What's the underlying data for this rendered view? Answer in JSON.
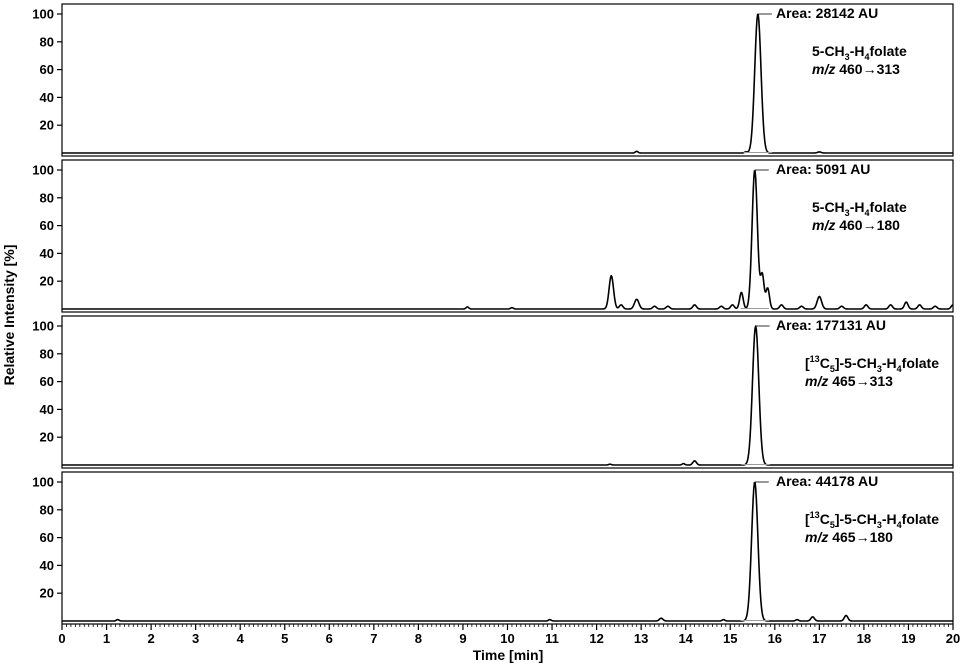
{
  "chart_data": {
    "type": "line",
    "xlabel": "Time [min]",
    "ylabel": "Relative Intensity [%]",
    "xlim": [
      0,
      20
    ],
    "x_ticks": [
      "0",
      "1",
      "2",
      "3",
      "4",
      "5",
      "6",
      "7",
      "8",
      "9",
      "10",
      "11",
      "12",
      "13",
      "14",
      "15",
      "16",
      "17",
      "18",
      "19",
      "20"
    ],
    "ylim": [
      0,
      100
    ],
    "y_ticks": [
      "20",
      "40",
      "60",
      "80",
      "100"
    ],
    "panels": [
      {
        "area_text": "Area: 28142 AU",
        "compound": "5-CH3-H4folate",
        "mz_prefix": "m/z",
        "transition": "460→313",
        "series": [
          {
            "center": 15.62,
            "width": 0.07,
            "height": 100
          },
          {
            "center": 12.9,
            "width": 0.03,
            "height": 1.2
          },
          {
            "center": 15.35,
            "width": 0.03,
            "height": 0.8
          },
          {
            "center": 17.0,
            "width": 0.04,
            "height": 0.8
          }
        ]
      },
      {
        "area_text": "Area: 5091 AU",
        "compound": "5-CH3-H4folate",
        "mz_prefix": "m/z",
        "transition": "460→180",
        "series": [
          {
            "center": 15.55,
            "width": 0.06,
            "height": 100
          },
          {
            "center": 12.33,
            "width": 0.05,
            "height": 24
          },
          {
            "center": 12.55,
            "width": 0.04,
            "height": 3
          },
          {
            "center": 12.9,
            "width": 0.05,
            "height": 7
          },
          {
            "center": 13.3,
            "width": 0.04,
            "height": 2
          },
          {
            "center": 13.6,
            "width": 0.04,
            "height": 2
          },
          {
            "center": 14.2,
            "width": 0.04,
            "height": 3
          },
          {
            "center": 14.8,
            "width": 0.04,
            "height": 2
          },
          {
            "center": 15.05,
            "width": 0.04,
            "height": 3
          },
          {
            "center": 15.25,
            "width": 0.04,
            "height": 12
          },
          {
            "center": 15.72,
            "width": 0.04,
            "height": 24
          },
          {
            "center": 15.84,
            "width": 0.04,
            "height": 15
          },
          {
            "center": 16.15,
            "width": 0.04,
            "height": 3
          },
          {
            "center": 16.6,
            "width": 0.04,
            "height": 2
          },
          {
            "center": 17.0,
            "width": 0.05,
            "height": 9
          },
          {
            "center": 17.5,
            "width": 0.04,
            "height": 2
          },
          {
            "center": 18.05,
            "width": 0.04,
            "height": 3
          },
          {
            "center": 18.6,
            "width": 0.04,
            "height": 3
          },
          {
            "center": 18.95,
            "width": 0.04,
            "height": 5
          },
          {
            "center": 19.25,
            "width": 0.04,
            "height": 3
          },
          {
            "center": 19.6,
            "width": 0.04,
            "height": 2
          },
          {
            "center": 20.0,
            "width": 0.04,
            "height": 3
          },
          {
            "center": 9.1,
            "width": 0.03,
            "height": 1.5
          },
          {
            "center": 10.1,
            "width": 0.03,
            "height": 1
          }
        ]
      },
      {
        "area_text": "Area: 177131 AU",
        "compound": "[13C5]-5-CH3-H4folate",
        "mz_prefix": "m/z",
        "transition": "465→313",
        "series": [
          {
            "center": 15.57,
            "width": 0.07,
            "height": 100
          },
          {
            "center": 14.2,
            "width": 0.04,
            "height": 3
          },
          {
            "center": 13.95,
            "width": 0.03,
            "height": 1
          },
          {
            "center": 12.3,
            "width": 0.03,
            "height": 0.6
          }
        ]
      },
      {
        "area_text": "Area: 44178 AU",
        "compound": "[13C5]-5-CH3-H4folate",
        "mz_prefix": "m/z",
        "transition": "465→180",
        "series": [
          {
            "center": 15.55,
            "width": 0.07,
            "height": 100
          },
          {
            "center": 1.25,
            "width": 0.03,
            "height": 1
          },
          {
            "center": 10.95,
            "width": 0.03,
            "height": 1
          },
          {
            "center": 13.45,
            "width": 0.04,
            "height": 2
          },
          {
            "center": 14.85,
            "width": 0.03,
            "height": 1
          },
          {
            "center": 16.85,
            "width": 0.04,
            "height": 3
          },
          {
            "center": 17.6,
            "width": 0.04,
            "height": 4
          },
          {
            "center": 16.5,
            "width": 0.03,
            "height": 1
          }
        ]
      }
    ]
  }
}
